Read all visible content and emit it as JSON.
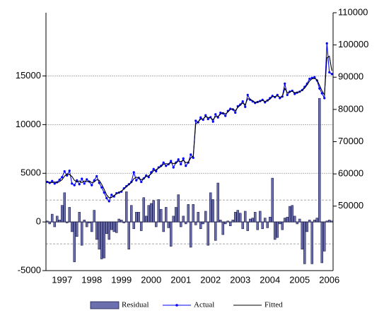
{
  "chart_data": {
    "type": "combo",
    "categories": [
      null,
      null,
      null,
      null,
      null,
      null,
      "1997",
      null,
      null,
      null,
      null,
      null,
      null,
      null,
      null,
      null,
      null,
      null,
      "1998",
      null,
      null,
      null,
      null,
      null,
      null,
      null,
      null,
      null,
      null,
      null,
      "1999",
      null,
      null,
      null,
      null,
      null,
      null,
      null,
      null,
      null,
      null,
      null,
      "2000",
      null,
      null,
      null,
      null,
      null,
      null,
      null,
      null,
      null,
      null,
      null,
      "2001",
      null,
      null,
      null,
      null,
      null,
      null,
      null,
      null,
      null,
      null,
      null,
      "2002",
      null,
      null,
      null,
      null,
      null,
      null,
      null,
      null,
      null,
      null,
      null,
      "2003",
      null,
      null,
      null,
      null,
      null,
      null,
      null,
      null,
      null,
      null,
      null,
      "2004",
      null,
      null,
      null,
      null,
      null,
      null,
      null,
      null,
      null,
      null,
      null,
      "2005",
      null,
      null,
      null,
      null,
      null,
      null,
      null,
      null,
      null,
      null,
      null,
      "2006",
      null
    ],
    "series": [
      {
        "name": "Residual",
        "type": "bar",
        "axis": "y",
        "color": "#6b6fae",
        "edge": "#1f1f4f",
        "values": [
          100,
          -200,
          800,
          -500,
          600,
          200,
          1700,
          3000,
          -100,
          1500,
          -1000,
          -4100,
          -1500,
          1000,
          -2400,
          200,
          -500,
          -100,
          -1000,
          1200,
          -1800,
          -2800,
          -3800,
          -3700,
          -1200,
          -1800,
          -800,
          -1000,
          -1100,
          300,
          200,
          -100,
          3100,
          -2800,
          1700,
          -700,
          1000,
          1000,
          -900,
          2500,
          600,
          1700,
          1900,
          2200,
          -500,
          2300,
          1300,
          -1000,
          1500,
          -600,
          -2500,
          600,
          1500,
          2800,
          -500,
          600,
          -200,
          1800,
          -2600,
          1800,
          -300,
          1000,
          -700,
          -200,
          1100,
          -2400,
          3000,
          2300,
          -1900,
          4000,
          200,
          -1300,
          -200,
          100,
          -400,
          200,
          1000,
          1200,
          900,
          -700,
          1100,
          -900,
          300,
          400,
          1000,
          -800,
          1100,
          -700,
          400,
          -600,
          500,
          4500,
          -1800,
          -1600,
          -200,
          -800,
          400,
          500,
          1600,
          1700,
          600,
          -200,
          300,
          -2800,
          -4300,
          -1000,
          200,
          -4300,
          200,
          400,
          12700,
          -4200,
          -3000,
          100,
          200,
          100
        ]
      },
      {
        "name": "Actual",
        "type": "line",
        "axis": "y2",
        "color": "#0000ff",
        "markers": true,
        "values": [
          57500,
          57200,
          57800,
          57000,
          57400,
          58200,
          59000,
          60800,
          59500,
          61000,
          57000,
          56500,
          58000,
          56800,
          58500,
          57000,
          58300,
          57600,
          56500,
          58000,
          59300,
          57200,
          55800,
          54200,
          52500,
          51500,
          53500,
          53000,
          54000,
          54200,
          54500,
          55500,
          56200,
          56800,
          57500,
          60500,
          58000,
          58800,
          57500,
          58600,
          59500,
          59000,
          60500,
          61500,
          60800,
          62000,
          62500,
          63500,
          62500,
          63000,
          64000,
          62000,
          63500,
          64500,
          63000,
          64800,
          62500,
          63500,
          66000,
          65000,
          76500,
          76000,
          77500,
          76800,
          78200,
          77000,
          77600,
          76200,
          78500,
          77500,
          79000,
          78800,
          78000,
          79500,
          80200,
          80000,
          79000,
          81000,
          81500,
          82500,
          80800,
          84500,
          83000,
          82500,
          82000,
          82300,
          82600,
          83000,
          82200,
          82800,
          83500,
          84200,
          83800,
          84500,
          83500,
          84000,
          88000,
          84500,
          85500,
          85800,
          84800,
          85200,
          85500,
          86000,
          87000,
          88000,
          89500,
          89800,
          90000,
          89000,
          86500,
          85000,
          83500,
          100500,
          91500,
          91000
        ]
      },
      {
        "name": "Fitted",
        "type": "line",
        "axis": "y2",
        "color": "#000000",
        "markers": false,
        "values": [
          57600,
          57400,
          57300,
          57500,
          57300,
          57600,
          58200,
          59300,
          60000,
          59800,
          59200,
          58000,
          57500,
          57800,
          57300,
          57800,
          57600,
          57800,
          57300,
          57500,
          58200,
          58000,
          56800,
          55200,
          53500,
          52600,
          52700,
          53300,
          53800,
          54300,
          54700,
          55300,
          56000,
          56700,
          57300,
          58500,
          59000,
          58700,
          58200,
          58500,
          59200,
          59400,
          60000,
          61000,
          61300,
          61800,
          62300,
          63000,
          63200,
          63000,
          63500,
          63200,
          63300,
          64000,
          63800,
          64200,
          63500,
          63600,
          65000,
          65500,
          75500,
          76200,
          77000,
          77000,
          77800,
          77500,
          77400,
          76800,
          77800,
          77800,
          78500,
          79000,
          78600,
          79200,
          80000,
          80200,
          79600,
          80600,
          81300,
          82000,
          81500,
          83300,
          83200,
          82700,
          82200,
          82300,
          82500,
          82800,
          82500,
          82700,
          83200,
          84000,
          84000,
          84200,
          83800,
          84000,
          86500,
          85200,
          85400,
          85700,
          85200,
          85300,
          85500,
          85900,
          86600,
          87600,
          88800,
          89500,
          89600,
          89200,
          87500,
          85800,
          84500,
          96000,
          96500,
          92000
        ]
      }
    ],
    "ylim": [
      -5000,
      21500
    ],
    "yticks": [
      -5000,
      0,
      5000,
      10000,
      15000
    ],
    "y2lim": [
      30000,
      110000
    ],
    "y2ticks": [
      50000,
      60000,
      70000,
      80000,
      90000,
      100000,
      110000
    ],
    "ref_lines": [
      2250,
      -2250
    ],
    "grid": true,
    "legend": "bottom"
  }
}
